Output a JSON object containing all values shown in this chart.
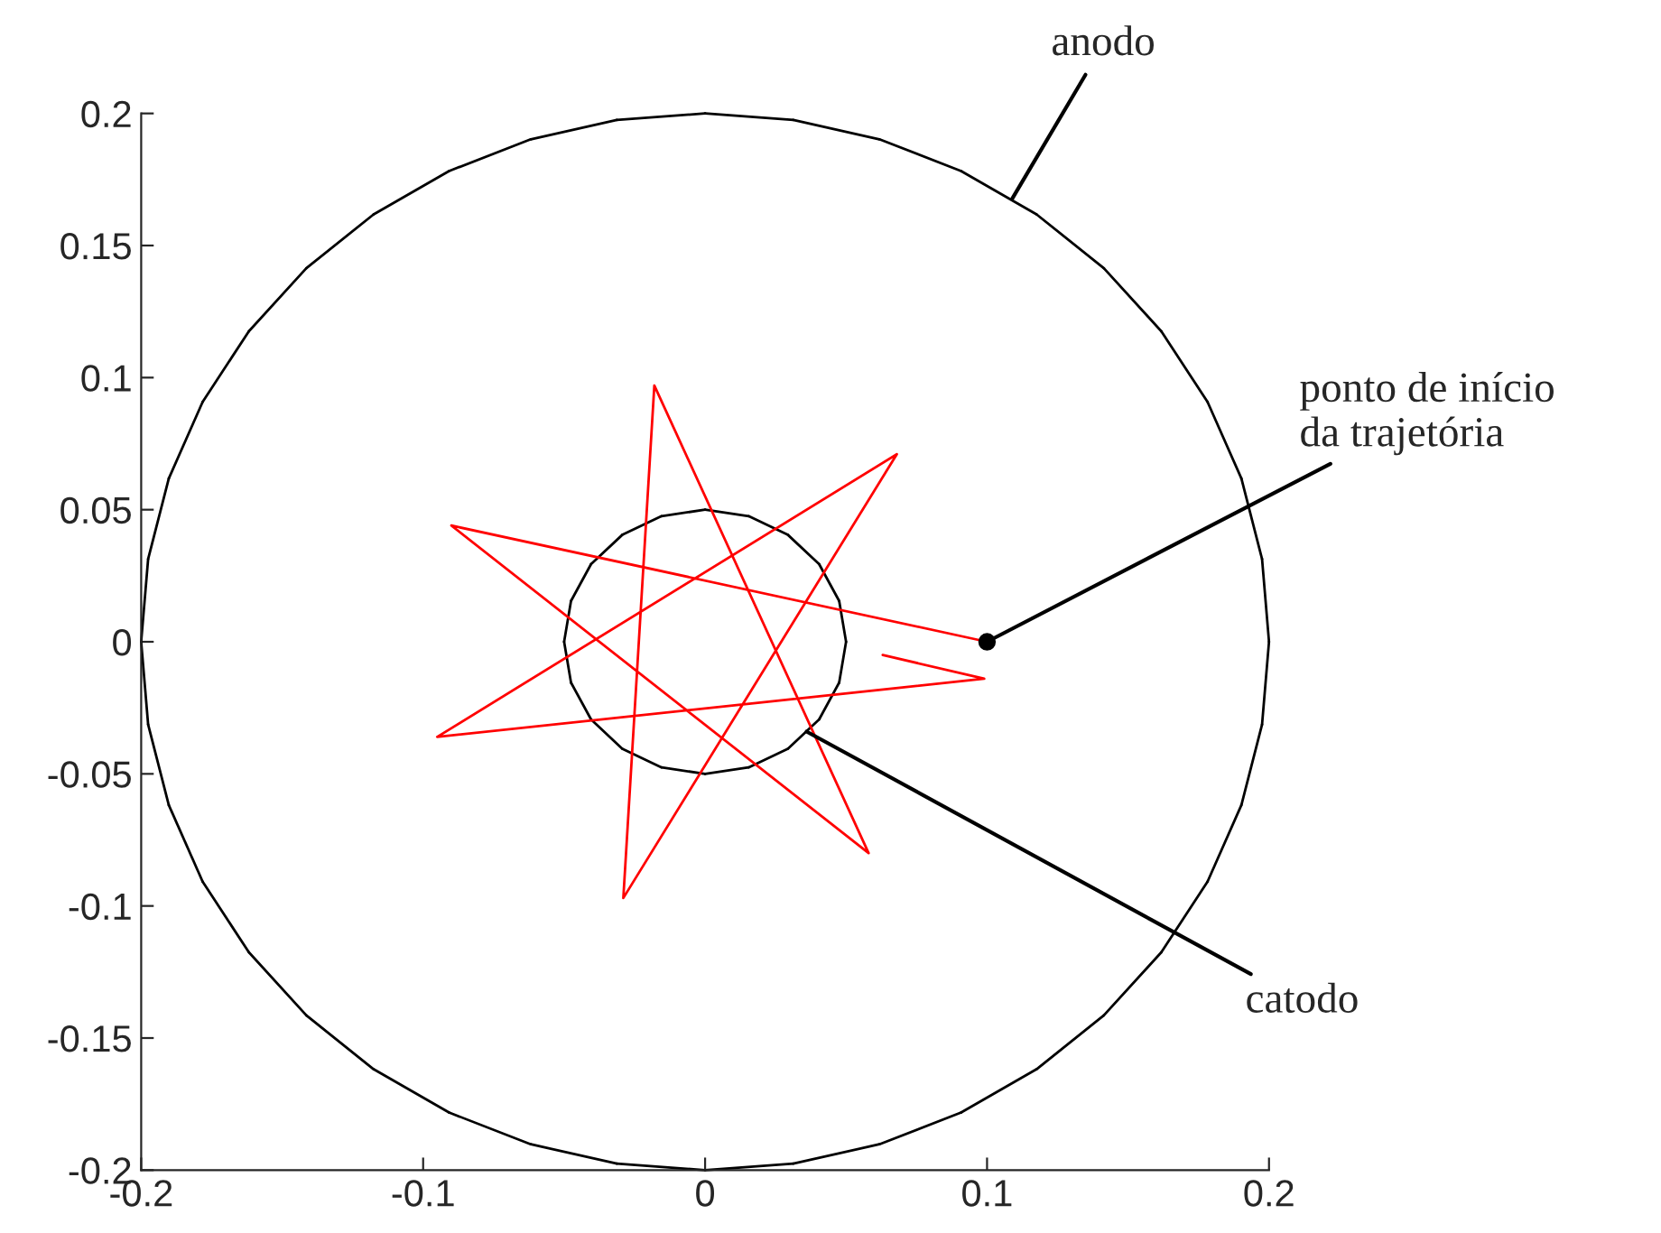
{
  "chart_data": {
    "type": "line",
    "series": [
      {
        "color": "#ff0000",
        "x": [
          0.1,
          -0.09,
          0.058,
          -0.018,
          -0.029,
          0.068,
          -0.095,
          0.099,
          0.063
        ],
        "values": [
          0,
          0.044,
          -0.08,
          0.097,
          -0.097,
          0.071,
          -0.036,
          -0.014,
          -0.005
        ]
      }
    ],
    "xlim": [
      -0.2,
      0.2
    ],
    "xticks": [
      -0.2,
      -0.1,
      0,
      0.1,
      0.2
    ],
    "ylim": [
      -0.2,
      0.2
    ],
    "yticks": [
      -0.2,
      -0.15,
      -0.1,
      -0.05,
      0,
      0.05,
      0.1,
      0.15,
      0.2
    ],
    "grid": false,
    "legend": false,
    "annotations": [
      "anodo",
      {
        "text": "ponto de início\nda trajetória",
        "x": 0.1,
        "y": 0
      },
      {
        "text": "catodo",
        "x": 0.036,
        "y": -0.034
      }
    ]
  }
}
